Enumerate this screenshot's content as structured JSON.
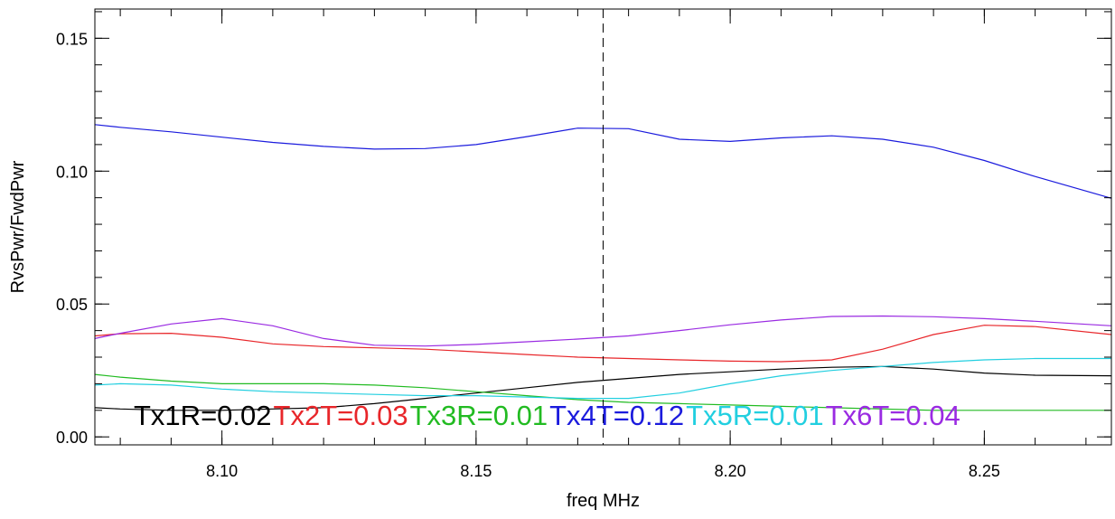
{
  "chart_data": {
    "type": "line",
    "xlabel": "freq MHz",
    "ylabel": "RvsPwr/FwdPwr",
    "xlim": [
      8.075,
      8.275
    ],
    "ylim": [
      -0.003,
      0.161
    ],
    "xticks": [
      "8.10",
      "8.15",
      "8.20",
      "8.25"
    ],
    "xtick_values": [
      8.1,
      8.15,
      8.2,
      8.25
    ],
    "yticks": [
      "0.00",
      "0.05",
      "0.10",
      "0.15"
    ],
    "ytick_values": [
      0.0,
      0.05,
      0.1,
      0.15
    ],
    "marker_line_x": 8.175,
    "grid": false,
    "x": [
      8.075,
      8.08,
      8.09,
      8.1,
      8.11,
      8.12,
      8.13,
      8.14,
      8.15,
      8.16,
      8.17,
      8.18,
      8.19,
      8.2,
      8.21,
      8.22,
      8.23,
      8.24,
      8.25,
      8.26,
      8.275
    ],
    "series": [
      {
        "name": "Tx1R",
        "color": "#000000",
        "values": [
          0.011,
          0.0105,
          0.01,
          0.01,
          0.0105,
          0.011,
          0.0125,
          0.0145,
          0.0165,
          0.0185,
          0.0205,
          0.022,
          0.0235,
          0.0245,
          0.0255,
          0.0262,
          0.0265,
          0.0255,
          0.024,
          0.0232,
          0.023
        ]
      },
      {
        "name": "Tx2T",
        "color": "#e8262a",
        "values": [
          0.038,
          0.0388,
          0.039,
          0.0375,
          0.035,
          0.034,
          0.0335,
          0.033,
          0.032,
          0.031,
          0.03,
          0.0295,
          0.029,
          0.0285,
          0.0283,
          0.029,
          0.033,
          0.0385,
          0.042,
          0.0415,
          0.0385
        ]
      },
      {
        "name": "Tx3R",
        "color": "#22bb22",
        "values": [
          0.0235,
          0.0225,
          0.021,
          0.02,
          0.02,
          0.02,
          0.0195,
          0.0185,
          0.017,
          0.0155,
          0.014,
          0.013,
          0.0125,
          0.012,
          0.0115,
          0.011,
          0.0105,
          0.01,
          0.01,
          0.01,
          0.01
        ]
      },
      {
        "name": "Tx4T",
        "color": "#1b1bdd",
        "values": [
          0.1175,
          0.1165,
          0.1148,
          0.1128,
          0.1108,
          0.1093,
          0.1083,
          0.1085,
          0.11,
          0.113,
          0.1162,
          0.116,
          0.112,
          0.1112,
          0.1125,
          0.1133,
          0.112,
          0.109,
          0.104,
          0.098,
          0.0898
        ]
      },
      {
        "name": "Tx5R",
        "color": "#22cfe0",
        "values": [
          0.0195,
          0.02,
          0.0195,
          0.018,
          0.017,
          0.0165,
          0.016,
          0.0155,
          0.0155,
          0.015,
          0.0145,
          0.0145,
          0.0165,
          0.02,
          0.023,
          0.025,
          0.0265,
          0.028,
          0.029,
          0.0295,
          0.0295
        ]
      },
      {
        "name": "Tx6T",
        "color": "#9a2be2",
        "values": [
          0.037,
          0.039,
          0.0425,
          0.0445,
          0.0418,
          0.037,
          0.0345,
          0.0342,
          0.0348,
          0.0358,
          0.0368,
          0.038,
          0.04,
          0.0422,
          0.044,
          0.0453,
          0.0455,
          0.0452,
          0.0445,
          0.0435,
          0.0418
        ]
      }
    ],
    "legend_labels": [
      "Tx1R=0.02",
      "Tx2T=0.03",
      "Tx3R=0.01",
      "Tx4T=0.12",
      "Tx5R=0.01",
      "Tx6T=0.04"
    ],
    "legend_placement": "bottom, inside plot"
  }
}
